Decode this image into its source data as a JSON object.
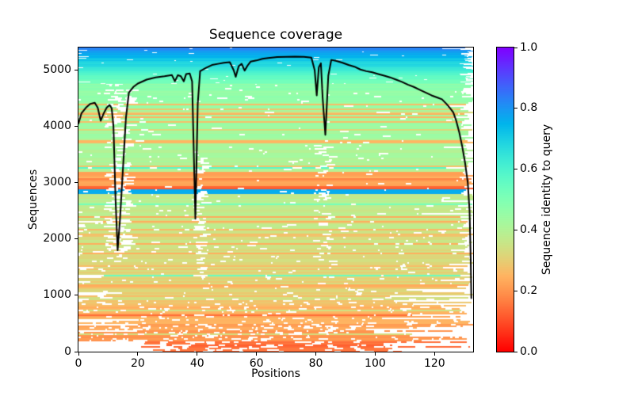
{
  "figure": {
    "title": "Sequence coverage",
    "background": "#ffffff"
  },
  "chart_data": {
    "type": "heatmap",
    "subtype": "msa-coverage-with-line",
    "title": "Sequence coverage",
    "xlabel": "Positions",
    "ylabel": "Sequences",
    "colorbar_label": "Sequence identity to query",
    "xlim": [
      0,
      133
    ],
    "ylim": [
      0,
      5400
    ],
    "xtick_values": [
      0,
      20,
      40,
      60,
      80,
      100,
      120
    ],
    "xtick_labels": [
      "0",
      "20",
      "40",
      "60",
      "80",
      "100",
      "120"
    ],
    "ytick_values": [
      0,
      1000,
      2000,
      3000,
      4000,
      5000
    ],
    "ytick_labels": [
      "0",
      "1000",
      "2000",
      "3000",
      "4000",
      "5000"
    ],
    "grid": false,
    "legend": "none",
    "colorbar": {
      "tick_values": [
        0.0,
        0.2,
        0.4,
        0.6,
        0.8,
        1.0
      ],
      "tick_labels": [
        "0.0",
        "0.2",
        "0.4",
        "0.6",
        "0.8",
        "1.0"
      ],
      "cmap": "rainbow (0.0=red, 0.2=orange, 0.4=yellow-green, 0.6=turquoise, 0.8=blue, 1.0=violet)",
      "cmap_anchor_colors": {
        "0.0": "#ff0000",
        "0.2": "#ff964f",
        "0.4": "#b3f296",
        "0.6": "#4df2ce",
        "0.8": "#1a96f2",
        "1.0": "#8000ff"
      }
    },
    "coverage_line": {
      "color": "#000000",
      "width": 2,
      "points": [
        [
          0,
          4050
        ],
        [
          1,
          4230
        ],
        [
          2.5,
          4330
        ],
        [
          4,
          4400
        ],
        [
          5.5,
          4420
        ],
        [
          6.5,
          4330
        ],
        [
          7.5,
          4100
        ],
        [
          8.5,
          4230
        ],
        [
          9.5,
          4330
        ],
        [
          10.5,
          4380
        ],
        [
          11.2,
          4320
        ],
        [
          11.8,
          4000
        ],
        [
          12.5,
          2700
        ],
        [
          13.2,
          1800
        ],
        [
          14,
          2350
        ],
        [
          15,
          3250
        ],
        [
          16,
          4150
        ],
        [
          17,
          4600
        ],
        [
          18.5,
          4700
        ],
        [
          20,
          4760
        ],
        [
          23,
          4830
        ],
        [
          26,
          4870
        ],
        [
          29,
          4890
        ],
        [
          31.5,
          4910
        ],
        [
          32.5,
          4800
        ],
        [
          33.5,
          4910
        ],
        [
          34.5,
          4890
        ],
        [
          35.5,
          4800
        ],
        [
          36.3,
          4930
        ],
        [
          37.5,
          4940
        ],
        [
          38.3,
          4800
        ],
        [
          39.4,
          2360
        ],
        [
          40.2,
          4400
        ],
        [
          41,
          4980
        ],
        [
          43,
          5040
        ],
        [
          45,
          5090
        ],
        [
          47,
          5110
        ],
        [
          49,
          5130
        ],
        [
          51,
          5140
        ],
        [
          52.3,
          5000
        ],
        [
          53,
          4880
        ],
        [
          54,
          5070
        ],
        [
          55,
          5110
        ],
        [
          56,
          4990
        ],
        [
          57,
          5080
        ],
        [
          58,
          5150
        ],
        [
          60,
          5170
        ],
        [
          62,
          5200
        ],
        [
          64,
          5215
        ],
        [
          67,
          5230
        ],
        [
          70,
          5235
        ],
        [
          73,
          5240
        ],
        [
          76,
          5235
        ],
        [
          78.5,
          5220
        ],
        [
          79.6,
          5000
        ],
        [
          80.3,
          4550
        ],
        [
          81,
          5050
        ],
        [
          81.7,
          5120
        ],
        [
          82.3,
          4500
        ],
        [
          83.2,
          3850
        ],
        [
          84.2,
          4900
        ],
        [
          85.2,
          5180
        ],
        [
          87,
          5160
        ],
        [
          89,
          5130
        ],
        [
          91,
          5090
        ],
        [
          93,
          5060
        ],
        [
          95,
          5010
        ],
        [
          97,
          4980
        ],
        [
          99,
          4960
        ],
        [
          101,
          4930
        ],
        [
          103,
          4900
        ],
        [
          105,
          4870
        ],
        [
          107,
          4830
        ],
        [
          109,
          4790
        ],
        [
          111,
          4740
        ],
        [
          113,
          4700
        ],
        [
          115,
          4650
        ],
        [
          117,
          4600
        ],
        [
          119,
          4550
        ],
        [
          121,
          4510
        ],
        [
          122.5,
          4480
        ],
        [
          124,
          4400
        ],
        [
          125.3,
          4320
        ],
        [
          126.3,
          4250
        ],
        [
          127.3,
          4100
        ],
        [
          128.3,
          3900
        ],
        [
          129.3,
          3650
        ],
        [
          130.3,
          3350
        ],
        [
          131.2,
          3000
        ],
        [
          131.8,
          2500
        ],
        [
          132.2,
          1600
        ],
        [
          132.4,
          950
        ]
      ]
    },
    "identity_bands": [
      {
        "rows": [
          4750,
          5400
        ],
        "identity": [
          0.5,
          0.83
        ],
        "style": "gradient cyan to blue, nearly gap-free"
      },
      {
        "rows": [
          3200,
          4750
        ],
        "identity": [
          0.4,
          0.47
        ],
        "streaks": {
          "orange_frac": 0.2,
          "cyan_frac": 0.035
        }
      },
      {
        "rows": [
          2930,
          3200
        ],
        "identity": [
          0.17,
          0.25
        ],
        "style": "orange band"
      },
      {
        "rows": [
          2880,
          2930
        ],
        "identity": [
          0.11,
          0.14
        ],
        "style": "red-orange stripe"
      },
      {
        "rows": [
          2790,
          2880
        ],
        "identity": [
          0.75,
          0.78
        ],
        "style": "solid blue band"
      },
      {
        "rows": [
          1000,
          2790
        ],
        "identity": [
          0.3,
          0.38
        ],
        "streaks": {
          "orange_frac": 0.13,
          "cyan_frac": 0.025
        }
      },
      {
        "rows": [
          180,
          1000
        ],
        "identity": [
          0.19,
          0.29
        ],
        "streaks": {
          "red_frac": 0.12,
          "green_frac": 0.12
        }
      },
      {
        "rows": [
          0,
          180
        ],
        "identity": [
          0.1,
          0.18
        ],
        "style": "sparse red-orange bottom"
      }
    ],
    "gap_columns": [
      {
        "positions": [
          8.5,
          16.5
        ],
        "rows": [
          1600,
          4750
        ],
        "gap_boost": 0.45
      },
      {
        "positions": [
          38.6,
          41.8
        ],
        "rows": [
          1300,
          3450
        ],
        "gap_boost": 0.55
      },
      {
        "positions": [
          79,
          84.5
        ],
        "rows": [
          1600,
          3650
        ],
        "gap_boost": 0.3
      },
      {
        "positions": [
          129,
          133
        ],
        "rows": [
          0,
          5400
        ],
        "gap_boost": "ramp to 0.5 (ragged right edge)"
      }
    ],
    "texture_seed": 20240613
  }
}
